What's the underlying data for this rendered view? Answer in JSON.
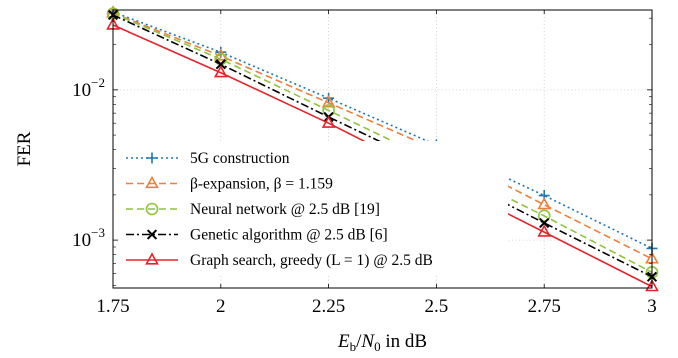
{
  "chart_data": {
    "type": "line",
    "title": "",
    "xlabel": "E_b/N_0 in dB",
    "xlabel_parts": {
      "E": "E",
      "b": "b",
      "slash": "/",
      "N": "N",
      "zero": "0",
      "suffix": " in dB"
    },
    "ylabel": "FER",
    "y_scale": "log",
    "xlim": [
      1.75,
      3
    ],
    "ylim": [
      0.00048,
      0.034
    ],
    "grid": true,
    "legend_position": "bottom-left",
    "x_ticks": [
      "1.75",
      "2",
      "2.25",
      "2.5",
      "2.75",
      "3"
    ],
    "y_ticks": [
      {
        "value": 0.01,
        "base": "10",
        "exp": "−2"
      },
      {
        "value": 0.001,
        "base": "10",
        "exp": "−3"
      }
    ],
    "x": [
      1.75,
      2,
      2.25,
      2.5,
      2.75,
      3
    ],
    "series": [
      {
        "name": "5G construction",
        "color": "#1f77b4",
        "dash": "dotted",
        "marker": "plus",
        "values": [
          0.033,
          0.0178,
          0.0088,
          0.0043,
          0.00198,
          0.00088
        ]
      },
      {
        "name": "β-expansion, β = 1.159",
        "color": "#f07f3c",
        "dash": "dashed",
        "marker": "triangle-open",
        "values": [
          0.0325,
          0.0168,
          0.0082,
          0.004,
          0.00172,
          0.00075
        ]
      },
      {
        "name": "Neural network @ 2.5 dB [19]",
        "color": "#8fc43f",
        "dash": "dashed",
        "marker": "circle-open",
        "values": [
          0.0322,
          0.016,
          0.0073,
          0.0033,
          0.00145,
          0.00061
        ]
      },
      {
        "name": "Genetic algorithm @ 2.5 dB [6]",
        "color": "#000000",
        "dash": "dashdot",
        "marker": "x",
        "values": [
          0.0315,
          0.0148,
          0.0066,
          0.003,
          0.0013,
          0.00057
        ]
      },
      {
        "name": "Graph search, greedy (L = 1) @ 2.5 dB",
        "color": "#e6232b",
        "dash": "solid",
        "marker": "triangle-open",
        "values": [
          0.027,
          0.013,
          0.006,
          0.0026,
          0.00113,
          0.00049
        ]
      }
    ]
  }
}
